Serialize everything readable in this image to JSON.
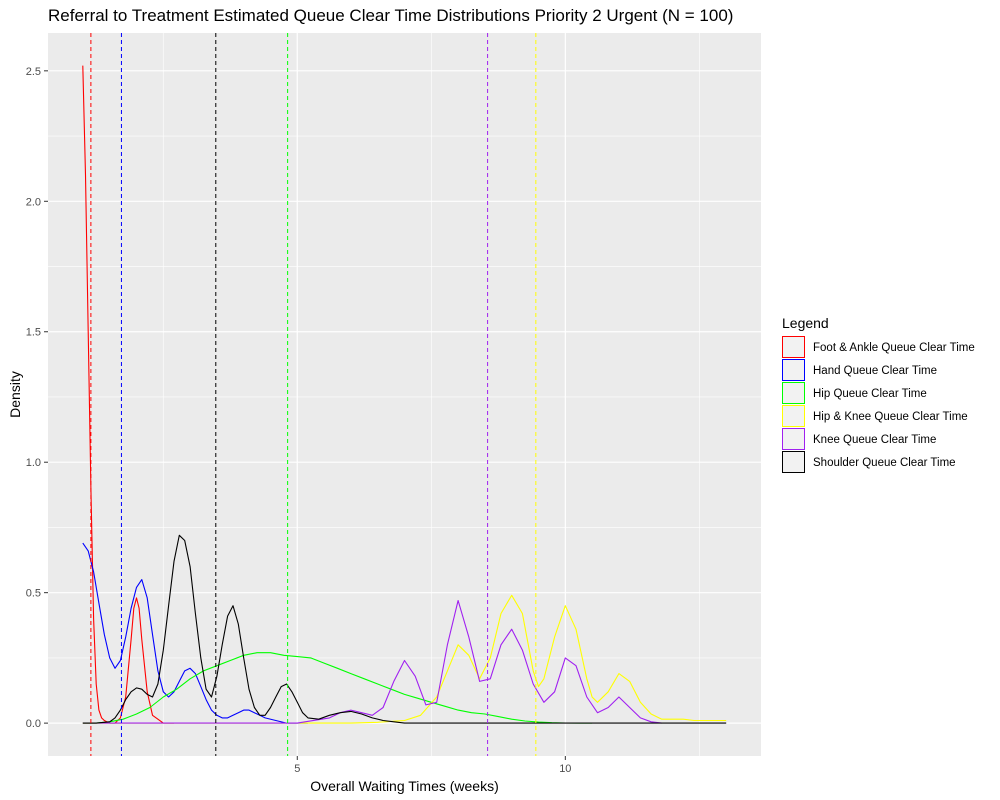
{
  "chart_data": {
    "type": "line",
    "title": "Referral to Treatment Estimated Queue Clear Time Distributions Priority 2 Urgent (N = 100)",
    "xlabel": "Overall Waiting Times (weeks)",
    "ylabel": "Density",
    "xlim": [
      0.35,
      13.65
    ],
    "ylim": [
      -0.126,
      2.645
    ],
    "x_ticks": [
      5,
      10
    ],
    "x_tick_labels": [
      "5",
      "10"
    ],
    "y_ticks": [
      0.0,
      0.5,
      1.0,
      1.5,
      2.0,
      2.5
    ],
    "y_tick_labels": [
      "0.0",
      "0.5",
      "1.0",
      "1.5",
      "2.0",
      "2.5"
    ],
    "grid": true,
    "legend": {
      "title": "Legend",
      "placement": "right",
      "entries": [
        "Foot & Ankle Queue Clear Time",
        "Hand Queue Clear Time",
        "Hip Queue Clear Time",
        "Hip & Knee Queue Clear Time",
        "Knee Queue Clear Time",
        "Shoulder Queue Clear Time"
      ]
    },
    "series": [
      {
        "name": "Foot & Ankle Queue Clear Time",
        "color": "#ff0000",
        "mean_line": 1.15,
        "x": [
          1.0,
          1.05,
          1.1,
          1.15,
          1.2,
          1.25,
          1.3,
          1.35,
          1.4,
          1.5,
          1.6,
          1.7,
          1.8,
          1.9,
          1.95,
          2.0,
          2.05,
          2.1,
          2.2,
          2.3,
          2.5,
          2.7
        ],
        "y": [
          2.52,
          2.1,
          1.5,
          0.9,
          0.4,
          0.15,
          0.05,
          0.02,
          0.01,
          0.0,
          0.0,
          0.02,
          0.1,
          0.32,
          0.44,
          0.48,
          0.44,
          0.32,
          0.12,
          0.03,
          0.0,
          0.0
        ]
      },
      {
        "name": "Hand Queue Clear Time",
        "color": "#0000ff",
        "mean_line": 1.72,
        "x": [
          1.0,
          1.1,
          1.2,
          1.3,
          1.4,
          1.5,
          1.6,
          1.7,
          1.8,
          1.9,
          2.0,
          2.1,
          2.2,
          2.3,
          2.4,
          2.5,
          2.6,
          2.7,
          2.8,
          2.9,
          3.0,
          3.1,
          3.2,
          3.3,
          3.4,
          3.5,
          3.6,
          3.7,
          3.8,
          3.9,
          4.0,
          4.1,
          4.2,
          4.3,
          4.4,
          4.6,
          4.8,
          5.0,
          5.2
        ],
        "y": [
          0.69,
          0.66,
          0.58,
          0.46,
          0.34,
          0.25,
          0.21,
          0.24,
          0.33,
          0.44,
          0.52,
          0.55,
          0.48,
          0.34,
          0.2,
          0.12,
          0.1,
          0.12,
          0.16,
          0.2,
          0.21,
          0.19,
          0.14,
          0.09,
          0.05,
          0.03,
          0.02,
          0.02,
          0.03,
          0.04,
          0.05,
          0.05,
          0.04,
          0.03,
          0.02,
          0.01,
          0.0,
          0.0,
          0.0
        ]
      },
      {
        "name": "Hip Queue Clear Time",
        "color": "#00ff00",
        "mean_line": 4.82,
        "x": [
          1.0,
          1.25,
          1.5,
          1.75,
          2.0,
          2.25,
          2.5,
          2.75,
          3.0,
          3.25,
          3.5,
          3.75,
          4.0,
          4.25,
          4.5,
          4.75,
          5.0,
          5.25,
          5.5,
          5.75,
          6.0,
          6.25,
          6.5,
          6.75,
          7.0,
          7.25,
          7.5,
          7.75,
          8.0,
          8.25,
          8.5,
          8.75,
          9.0,
          9.25,
          9.5,
          9.75,
          10.0,
          10.25,
          10.5
        ],
        "y": [
          0.0,
          0.0,
          0.005,
          0.015,
          0.035,
          0.06,
          0.1,
          0.13,
          0.17,
          0.2,
          0.22,
          0.24,
          0.26,
          0.27,
          0.27,
          0.26,
          0.255,
          0.25,
          0.23,
          0.21,
          0.19,
          0.17,
          0.15,
          0.13,
          0.11,
          0.095,
          0.08,
          0.065,
          0.05,
          0.04,
          0.035,
          0.025,
          0.015,
          0.008,
          0.004,
          0.0015,
          0.0005,
          0.0,
          0.0
        ]
      },
      {
        "name": "Hip & Knee Queue Clear Time",
        "color": "#ffff00",
        "mean_line": 9.45,
        "x": [
          1.0,
          3.0,
          5.0,
          6.0,
          6.5,
          7.0,
          7.3,
          7.6,
          7.8,
          8.0,
          8.2,
          8.4,
          8.6,
          8.8,
          9.0,
          9.2,
          9.4,
          9.5,
          9.6,
          9.8,
          10.0,
          10.2,
          10.4,
          10.5,
          10.6,
          10.8,
          11.0,
          11.2,
          11.4,
          11.6,
          11.8,
          12.0,
          12.2,
          12.4,
          12.6,
          12.8,
          13.0
        ],
        "y": [
          0.0,
          0.0,
          0.0,
          0.0,
          0.003,
          0.01,
          0.03,
          0.1,
          0.2,
          0.3,
          0.26,
          0.17,
          0.25,
          0.42,
          0.49,
          0.42,
          0.2,
          0.14,
          0.17,
          0.33,
          0.45,
          0.36,
          0.17,
          0.1,
          0.08,
          0.12,
          0.19,
          0.16,
          0.08,
          0.035,
          0.015,
          0.015,
          0.015,
          0.01,
          0.01,
          0.01,
          0.01
        ]
      },
      {
        "name": "Knee Queue Clear Time",
        "color": "#a020f0",
        "mean_line": 8.55,
        "x": [
          1.0,
          4.0,
          5.0,
          5.6,
          5.8,
          6.0,
          6.2,
          6.4,
          6.6,
          6.8,
          7.0,
          7.2,
          7.4,
          7.6,
          7.8,
          8.0,
          8.2,
          8.4,
          8.6,
          8.8,
          9.0,
          9.2,
          9.4,
          9.6,
          9.8,
          10.0,
          10.2,
          10.4,
          10.6,
          10.8,
          11.0,
          11.2,
          11.4,
          11.6,
          11.8
        ],
        "y": [
          0.0,
          0.0,
          0.0,
          0.02,
          0.04,
          0.05,
          0.04,
          0.03,
          0.06,
          0.16,
          0.24,
          0.18,
          0.07,
          0.08,
          0.3,
          0.47,
          0.33,
          0.16,
          0.17,
          0.3,
          0.36,
          0.28,
          0.15,
          0.08,
          0.12,
          0.25,
          0.22,
          0.1,
          0.04,
          0.06,
          0.1,
          0.06,
          0.02,
          0.005,
          0.0
        ]
      },
      {
        "name": "Shoulder Queue Clear Time",
        "color": "#000000",
        "mean_line": 3.48,
        "x": [
          1.0,
          1.25,
          1.5,
          1.6,
          1.7,
          1.8,
          1.9,
          2.0,
          2.1,
          2.2,
          2.3,
          2.4,
          2.5,
          2.6,
          2.7,
          2.8,
          2.9,
          3.0,
          3.1,
          3.2,
          3.3,
          3.4,
          3.5,
          3.6,
          3.7,
          3.8,
          3.9,
          4.0,
          4.1,
          4.2,
          4.3,
          4.4,
          4.5,
          4.6,
          4.7,
          4.8,
          4.9,
          5.0,
          5.1,
          5.2,
          5.4,
          5.6,
          5.8,
          6.0,
          6.2,
          6.4,
          6.6,
          6.8,
          7.0,
          8.0,
          10.0,
          13.0
        ],
        "y": [
          0.0,
          0.0,
          0.005,
          0.02,
          0.05,
          0.09,
          0.12,
          0.135,
          0.13,
          0.11,
          0.1,
          0.15,
          0.28,
          0.45,
          0.62,
          0.72,
          0.7,
          0.6,
          0.42,
          0.25,
          0.13,
          0.1,
          0.18,
          0.3,
          0.41,
          0.45,
          0.38,
          0.25,
          0.13,
          0.06,
          0.03,
          0.03,
          0.06,
          0.1,
          0.14,
          0.15,
          0.12,
          0.08,
          0.04,
          0.02,
          0.015,
          0.03,
          0.04,
          0.045,
          0.035,
          0.02,
          0.01,
          0.005,
          0.0,
          0.0,
          0.0,
          0.0
        ]
      }
    ]
  }
}
